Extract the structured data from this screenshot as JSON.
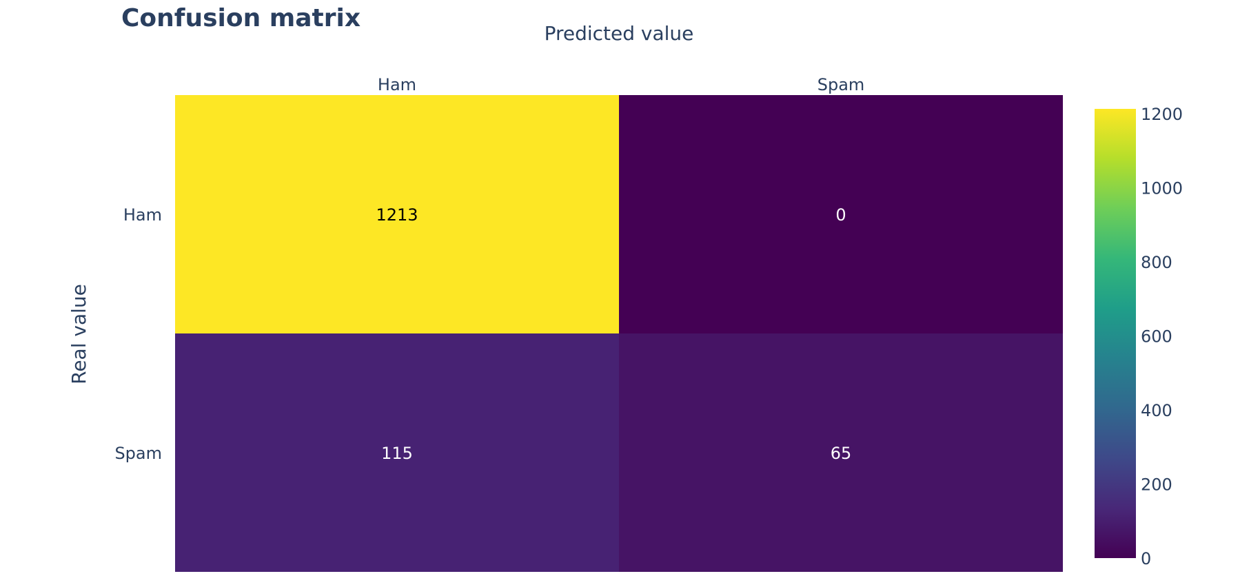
{
  "chart_data": {
    "type": "heatmap",
    "title": "Confusion matrix",
    "xlabel": "Predicted value",
    "ylabel": "Real value",
    "x_categories": [
      "Ham",
      "Spam"
    ],
    "y_categories": [
      "Ham",
      "Spam"
    ],
    "values": [
      [
        1213,
        0
      ],
      [
        115,
        65
      ]
    ],
    "colorscale": "viridis",
    "colorbar": {
      "range": [
        0,
        1213
      ],
      "ticks": [
        "0",
        "200",
        "400",
        "600",
        "800",
        "1000",
        "1200"
      ]
    },
    "x_axis_position": "top"
  }
}
